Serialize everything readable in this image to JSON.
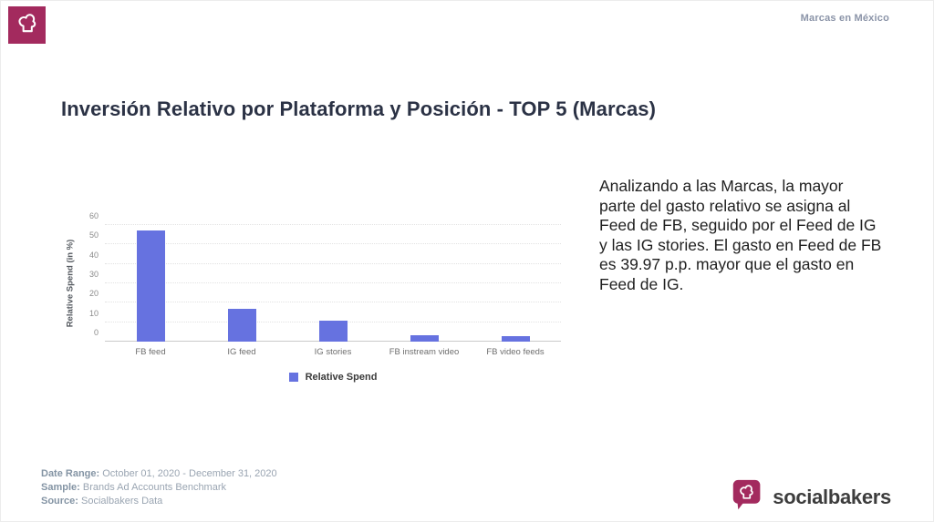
{
  "header": {
    "right_label": "Marcas en México"
  },
  "title": "Inversión Relativo por Plataforma y Posición - TOP 5 (Marcas)",
  "analysis": "Analizando a las Marcas, la mayor parte del gasto relativo se asigna al Feed de FB, seguido por el Feed de IG y las IG stories. El gasto en Feed de FB es 39.97 p.p. mayor que el gasto en Feed de IG.",
  "chart_data": {
    "type": "bar",
    "title": "",
    "categories": [
      "FB feed",
      "IG feed",
      "IG stories",
      "FB instream video",
      "FB video feeds"
    ],
    "values": [
      57,
      17,
      11,
      3.5,
      3
    ],
    "xlabel": "",
    "ylabel": "Relative Spend (in %)",
    "ylim": [
      0,
      60
    ],
    "yticks": [
      0,
      10,
      20,
      30,
      40,
      50,
      60
    ],
    "grid": true,
    "legend": {
      "label": "Relative Spend",
      "position": "bottom"
    },
    "bar_color": "#6672e0"
  },
  "footer": {
    "rows": [
      {
        "label": "Date Range:",
        "value": "October 01, 2020 - December 31, 2020"
      },
      {
        "label": "Sample:",
        "value": "Brands Ad Accounts Benchmark"
      },
      {
        "label": "Source:",
        "value": "Socialbakers Data"
      }
    ],
    "brand": "socialbakers"
  },
  "colors": {
    "accent": "#a32a5e",
    "bar": "#6672e0"
  }
}
